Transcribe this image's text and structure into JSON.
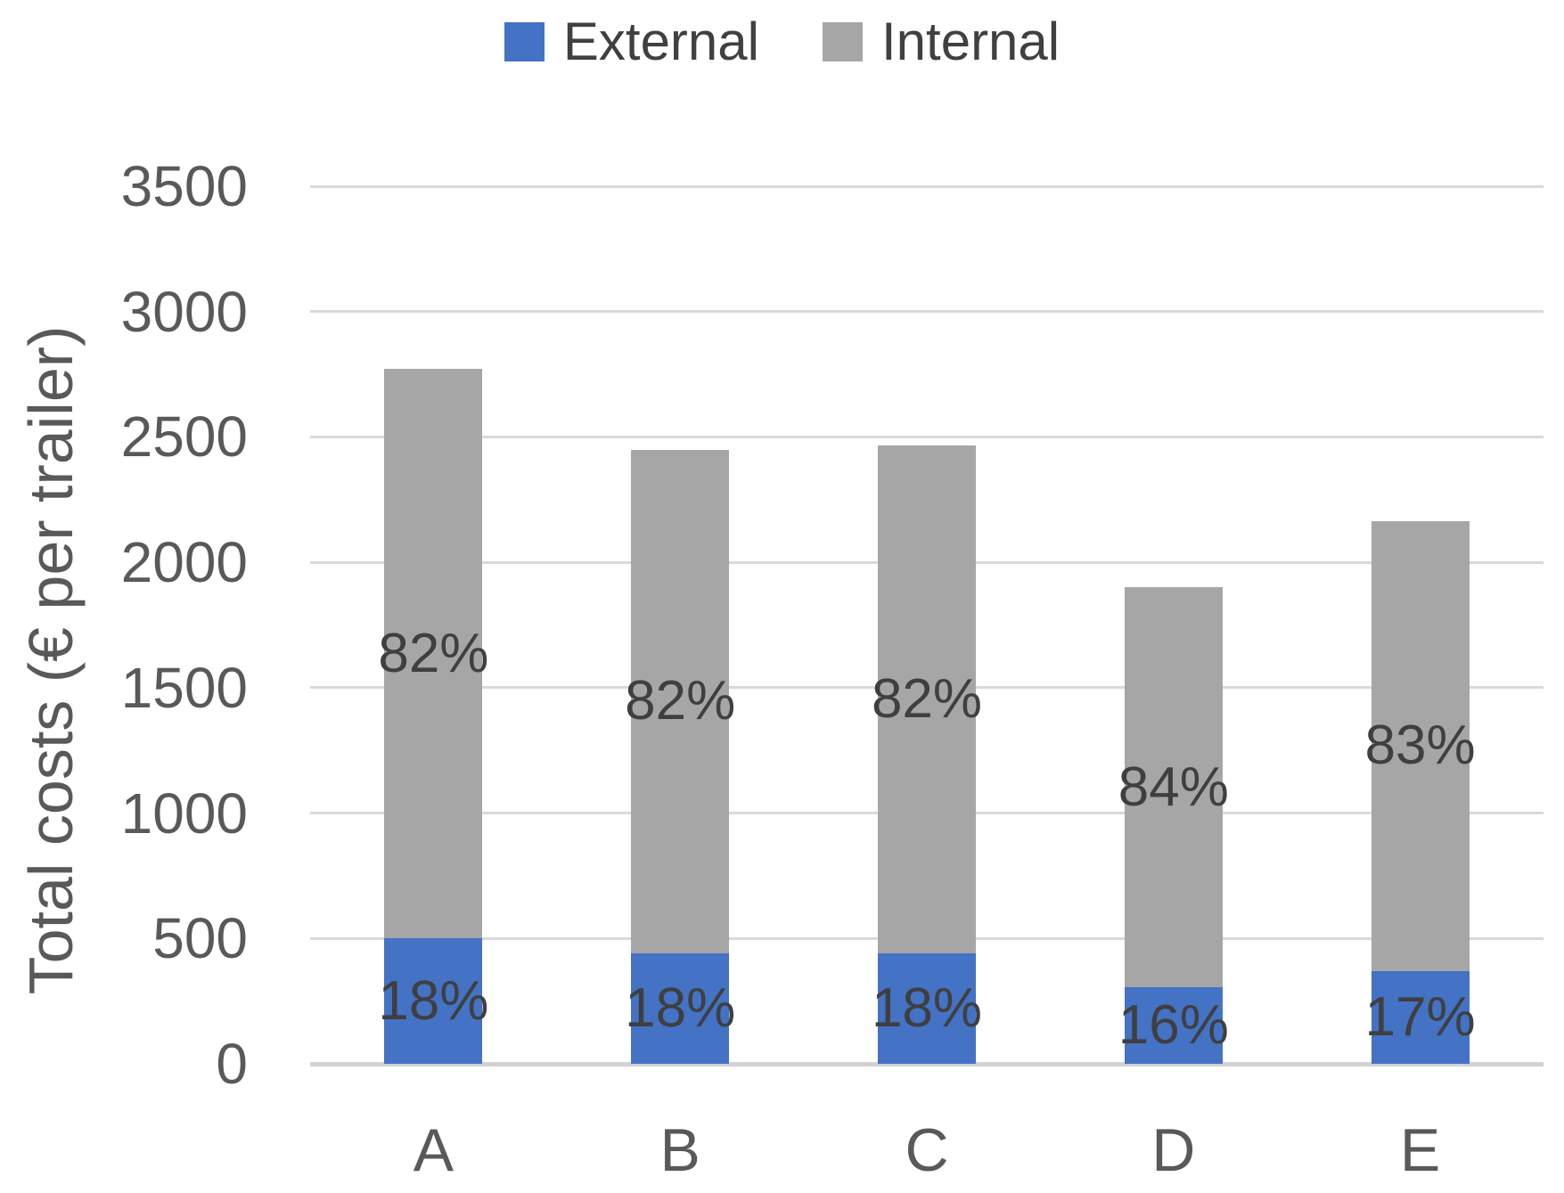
{
  "chart_data": {
    "type": "bar",
    "stacked": true,
    "title": "",
    "xlabel": "",
    "ylabel": "Total costs (€ per trailer)",
    "categories": [
      "A",
      "B",
      "C",
      "D",
      "E"
    ],
    "series": [
      {
        "name": "External",
        "color": "#4472c4",
        "values": [
          500,
          440,
          440,
          305,
          370
        ],
        "percent_labels": [
          "18%",
          "18%",
          "18%",
          "16%",
          "17%"
        ]
      },
      {
        "name": "Internal",
        "color": "#a6a6a6",
        "values": [
          2270,
          2010,
          2025,
          1595,
          1795
        ],
        "percent_labels": [
          "82%",
          "82%",
          "82%",
          "84%",
          "83%"
        ]
      }
    ],
    "totals": [
      2770,
      2450,
      2465,
      1900,
      2165
    ],
    "ylim": [
      0,
      3500
    ],
    "yticks": [
      0,
      500,
      1000,
      1500,
      2000,
      2500,
      3000,
      3500
    ],
    "grid": true,
    "legend_position": "top"
  },
  "colors": {
    "external": "#4472c4",
    "internal": "#a6a6a6",
    "gridline": "#d9d9d9",
    "axis_text": "#595959",
    "data_label_text": "#3f3f3f",
    "legend_text": "#404040",
    "background": "#ffffff"
  }
}
